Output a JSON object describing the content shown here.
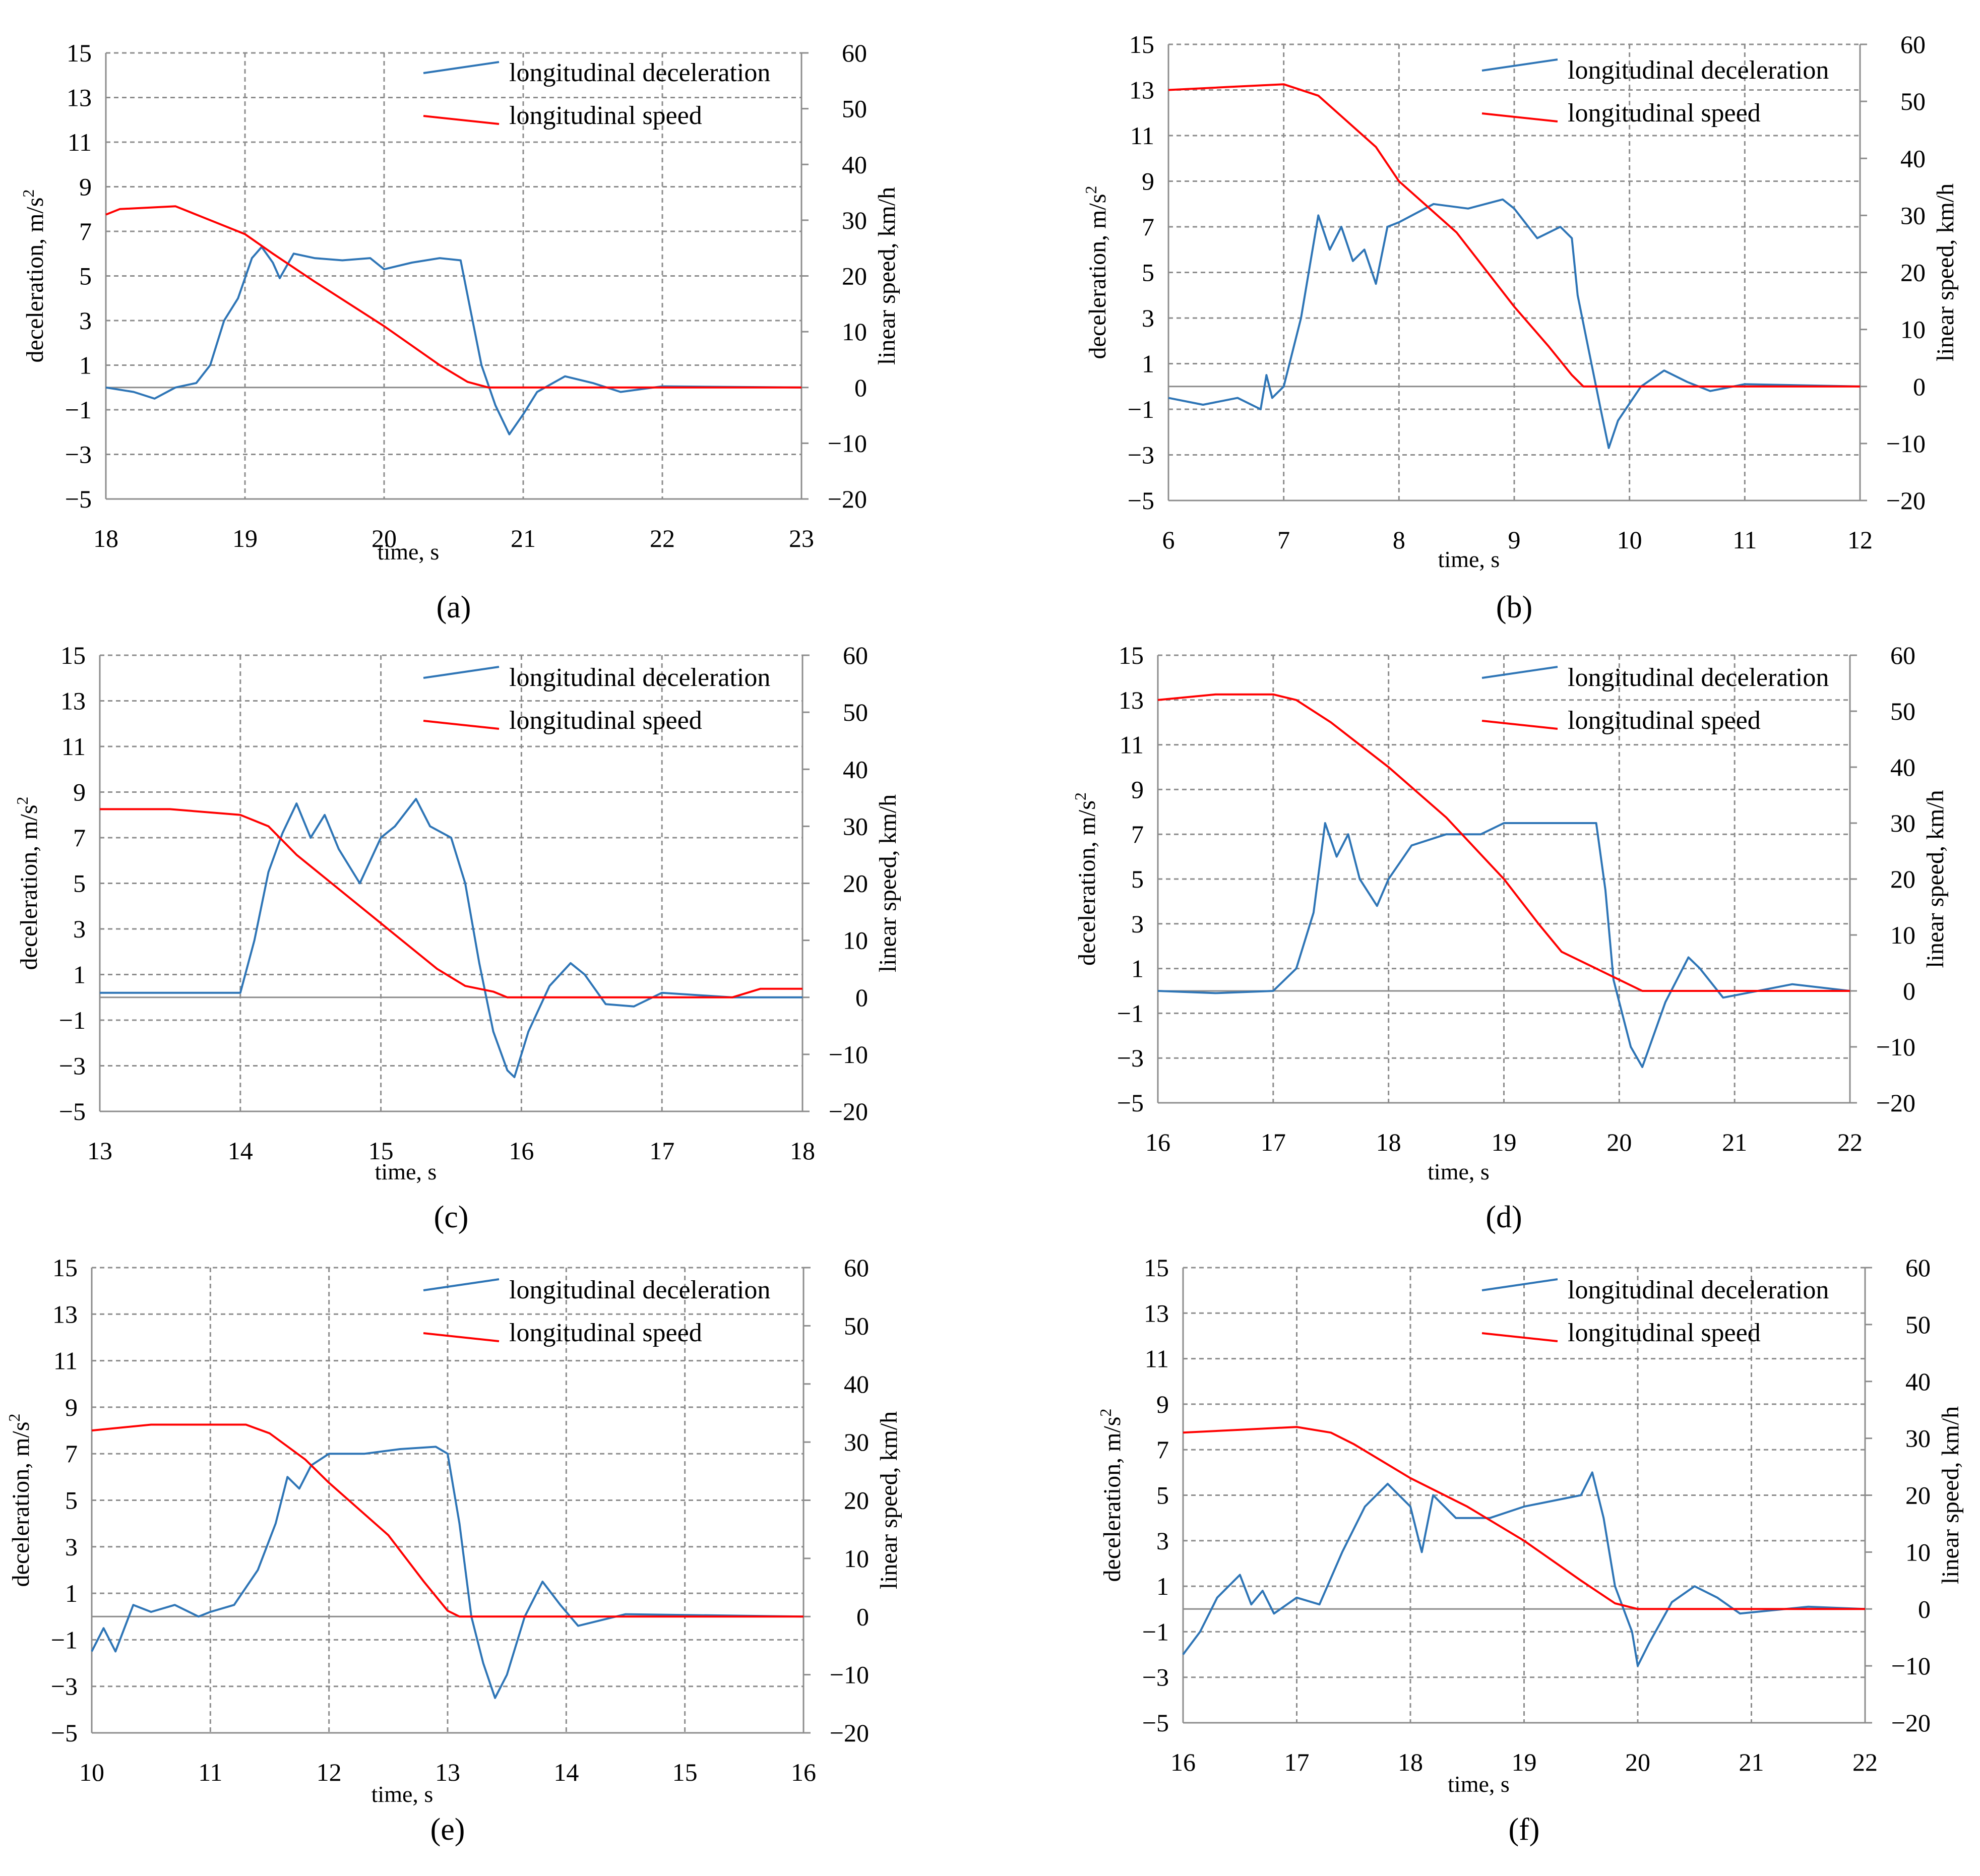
{
  "figure": {
    "colors": {
      "deceleration": "#2e75b6",
      "speed": "#ff0000",
      "grid": "#8c8c8c",
      "axis": "#8c8c8c"
    }
  },
  "chart_data": [
    {
      "panel": "(a)",
      "type": "line",
      "xlabel": "time, s",
      "ylabel": "deceleration, m/s2",
      "y2label": "linear speed, km/h",
      "xlim": [
        18,
        23
      ],
      "xticks": [
        "18",
        "19",
        "20",
        "21",
        "22",
        "23"
      ],
      "ylim": [
        -5,
        15
      ],
      "yticks": [
        "15",
        "13",
        "11",
        "9",
        "7",
        "5",
        "3",
        "1",
        "−1",
        "−3",
        "−5"
      ],
      "y2lim": [
        -20,
        60
      ],
      "y2ticks": [
        "60",
        "50",
        "40",
        "30",
        "20",
        "10",
        "0",
        "−10",
        "−20"
      ],
      "legend": [
        "longitudinal deceleration",
        "longitudinal speed"
      ],
      "series": [
        {
          "name": "longitudinal deceleration",
          "axis": "left",
          "x": [
            18,
            18.2,
            18.35,
            18.5,
            18.65,
            18.75,
            18.85,
            18.95,
            19.05,
            19.12,
            19.2,
            19.25,
            19.35,
            19.5,
            19.7,
            19.9,
            20.0,
            20.2,
            20.4,
            20.55,
            20.62,
            20.7,
            20.8,
            20.9,
            21.0,
            21.1,
            21.3,
            21.5,
            21.7,
            22.0,
            23.0
          ],
          "y": [
            0,
            -0.2,
            -0.5,
            0,
            0.2,
            1.0,
            3.0,
            4.0,
            5.8,
            6.3,
            5.6,
            4.9,
            6.0,
            5.8,
            5.7,
            5.8,
            5.3,
            5.6,
            5.8,
            5.7,
            3.5,
            1.0,
            -0.8,
            -2.1,
            -1.2,
            -0.2,
            0.5,
            0.2,
            -0.2,
            0.05,
            0
          ]
        },
        {
          "name": "longitudinal speed",
          "axis": "right",
          "x": [
            18,
            18.1,
            18.5,
            18.7,
            19.0,
            19.2,
            19.5,
            20.0,
            20.4,
            20.6,
            20.75,
            23.0
          ],
          "y": [
            31,
            32,
            32.5,
            30.5,
            27.5,
            24,
            19,
            11,
            4,
            1,
            0,
            0
          ]
        }
      ]
    },
    {
      "panel": "(b)",
      "type": "line",
      "xlabel": "time, s",
      "ylabel": "deceleration, m/s2",
      "y2label": "linear speed, km/h",
      "xlim": [
        6,
        12
      ],
      "xticks": [
        "6",
        "7",
        "8",
        "9",
        "10",
        "11",
        "12"
      ],
      "ylim": [
        -5,
        15
      ],
      "yticks": [
        "15",
        "13",
        "11",
        "9",
        "7",
        "5",
        "3",
        "1",
        "−1",
        "−3",
        "−5"
      ],
      "y2lim": [
        -20,
        60
      ],
      "y2ticks": [
        "60",
        "50",
        "40",
        "30",
        "20",
        "10",
        "0",
        "−10",
        "−20"
      ],
      "legend": [
        "longitudinal deceleration",
        "longitudinal speed"
      ],
      "series": [
        {
          "name": "longitudinal deceleration",
          "axis": "left",
          "x": [
            6,
            6.3,
            6.6,
            6.8,
            6.85,
            6.9,
            7.0,
            7.15,
            7.3,
            7.4,
            7.5,
            7.6,
            7.7,
            7.8,
            7.9,
            8.0,
            8.3,
            8.6,
            8.9,
            9.0,
            9.2,
            9.4,
            9.5,
            9.55,
            9.65,
            9.75,
            9.82,
            9.9,
            10.1,
            10.3,
            10.5,
            10.7,
            11.0,
            12.0
          ],
          "y": [
            -0.5,
            -0.8,
            -0.5,
            -1.0,
            0.5,
            -0.5,
            0,
            3.0,
            7.5,
            6.0,
            7.0,
            5.5,
            6.0,
            4.5,
            7.0,
            7.2,
            8.0,
            7.8,
            8.2,
            7.8,
            6.5,
            7.0,
            6.5,
            4.0,
            1.5,
            -1.0,
            -2.7,
            -1.5,
            0,
            0.7,
            0.2,
            -0.2,
            0.1,
            0
          ]
        },
        {
          "name": "longitudinal speed",
          "axis": "right",
          "x": [
            6,
            6.5,
            7.0,
            7.3,
            7.8,
            8.0,
            8.5,
            9.0,
            9.3,
            9.5,
            9.6,
            10.0,
            12.0
          ],
          "y": [
            52,
            52.5,
            53,
            51,
            42,
            36,
            27,
            14,
            7,
            2,
            0,
            0,
            0
          ]
        }
      ]
    },
    {
      "panel": "(c)",
      "type": "line",
      "xlabel": "time, s",
      "ylabel": "deceleration, m/s2",
      "y2label": "linear speed, km/h",
      "xlim": [
        13,
        18
      ],
      "xticks": [
        "13",
        "14",
        "15",
        "16",
        "17",
        "18"
      ],
      "ylim": [
        -5,
        15
      ],
      "yticks": [
        "15",
        "13",
        "11",
        "9",
        "7",
        "5",
        "3",
        "1",
        "−1",
        "−3",
        "−5"
      ],
      "y2lim": [
        -20,
        60
      ],
      "y2ticks": [
        "60",
        "50",
        "40",
        "30",
        "20",
        "10",
        "0",
        "−10",
        "−20"
      ],
      "legend": [
        "longitudinal deceleration",
        "longitudinal speed"
      ],
      "series": [
        {
          "name": "longitudinal deceleration",
          "axis": "left",
          "x": [
            13,
            13.5,
            14.0,
            14.1,
            14.2,
            14.3,
            14.4,
            14.5,
            14.6,
            14.7,
            14.85,
            15.0,
            15.1,
            15.25,
            15.35,
            15.5,
            15.6,
            15.7,
            15.8,
            15.9,
            15.95,
            16.05,
            16.2,
            16.35,
            16.45,
            16.6,
            16.8,
            17.0,
            17.5,
            18.0
          ],
          "y": [
            0.2,
            0.2,
            0.2,
            2.5,
            5.5,
            7.2,
            8.5,
            7.0,
            8.0,
            6.5,
            5.0,
            7.0,
            7.5,
            8.7,
            7.5,
            7.0,
            5.0,
            1.5,
            -1.5,
            -3.2,
            -3.5,
            -1.5,
            0.5,
            1.5,
            1.0,
            -0.3,
            -0.4,
            0.2,
            0,
            0
          ]
        },
        {
          "name": "longitudinal speed",
          "axis": "right",
          "x": [
            13,
            13.5,
            14.0,
            14.2,
            14.4,
            15.0,
            15.4,
            15.6,
            15.8,
            15.9,
            17.5,
            17.7,
            18.0
          ],
          "y": [
            33,
            33,
            32,
            30,
            25,
            13,
            5,
            2,
            1,
            0,
            0,
            1.5,
            1.5
          ]
        }
      ]
    },
    {
      "panel": "(d)",
      "type": "line",
      "xlabel": "time, s",
      "ylabel": "deceleration, m/s2",
      "y2label": "linear speed, km/h",
      "xlim": [
        16,
        22
      ],
      "xticks": [
        "16",
        "17",
        "18",
        "19",
        "20",
        "21",
        "22"
      ],
      "ylim": [
        -5,
        15
      ],
      "yticks": [
        "15",
        "13",
        "11",
        "9",
        "7",
        "5",
        "3",
        "1",
        "−1",
        "−3",
        "−5"
      ],
      "y2lim": [
        -20,
        60
      ],
      "y2ticks": [
        "60",
        "50",
        "40",
        "30",
        "20",
        "10",
        "0",
        "−10",
        "−20"
      ],
      "legend": [
        "longitudinal deceleration",
        "longitudinal speed"
      ],
      "series": [
        {
          "name": "longitudinal deceleration",
          "axis": "left",
          "x": [
            16,
            16.5,
            17.0,
            17.2,
            17.35,
            17.45,
            17.55,
            17.65,
            17.75,
            17.9,
            18.0,
            18.2,
            18.5,
            18.8,
            19.0,
            19.3,
            19.6,
            19.8,
            19.88,
            19.95,
            20.1,
            20.2,
            20.4,
            20.6,
            20.7,
            20.9,
            21.5,
            22.0
          ],
          "y": [
            0,
            -0.1,
            0,
            1.0,
            3.5,
            7.5,
            6.0,
            7.0,
            5.0,
            3.8,
            5.0,
            6.5,
            7.0,
            7.0,
            7.5,
            7.5,
            7.5,
            7.5,
            4.5,
            0.5,
            -2.5,
            -3.4,
            -0.5,
            1.5,
            1.0,
            -0.3,
            0.3,
            0
          ]
        },
        {
          "name": "longitudinal speed",
          "axis": "right",
          "x": [
            16,
            16.5,
            17.0,
            17.2,
            17.5,
            18.0,
            18.5,
            19.0,
            19.3,
            19.5,
            19.8,
            20.0,
            20.1,
            20.2,
            22.0
          ],
          "y": [
            52,
            53,
            53,
            52,
            48,
            40,
            31,
            20,
            12,
            7,
            4,
            2,
            1,
            0,
            0
          ]
        }
      ]
    },
    {
      "panel": "(e)",
      "type": "line",
      "xlabel": "time, s",
      "ylabel": "deceleration, m/s2",
      "y2label": "linear speed, km/h",
      "xlim": [
        10,
        16
      ],
      "xticks": [
        "10",
        "11",
        "12",
        "13",
        "14",
        "15",
        "16"
      ],
      "ylim": [
        -5,
        15
      ],
      "yticks": [
        "15",
        "13",
        "11",
        "9",
        "7",
        "5",
        "3",
        "1",
        "−1",
        "−3",
        "−5"
      ],
      "y2lim": [
        -20,
        60
      ],
      "y2ticks": [
        "60",
        "50",
        "40",
        "30",
        "20",
        "10",
        "0",
        "−10",
        "−20"
      ],
      "legend": [
        "longitudinal deceleration",
        "longitudinal speed"
      ],
      "series": [
        {
          "name": "longitudinal deceleration",
          "axis": "left",
          "x": [
            10,
            10.1,
            10.2,
            10.35,
            10.5,
            10.7,
            10.9,
            11.0,
            11.2,
            11.4,
            11.55,
            11.65,
            11.75,
            11.85,
            12.0,
            12.3,
            12.6,
            12.9,
            13.0,
            13.1,
            13.2,
            13.3,
            13.4,
            13.5,
            13.65,
            13.8,
            13.95,
            14.1,
            14.5,
            16.0
          ],
          "y": [
            -1.5,
            -0.5,
            -1.5,
            0.5,
            0.2,
            0.5,
            0,
            0.2,
            0.5,
            2.0,
            4.0,
            6.0,
            5.5,
            6.5,
            7.0,
            7.0,
            7.2,
            7.3,
            7.0,
            4.0,
            0,
            -2.0,
            -3.5,
            -2.5,
            0,
            1.5,
            0.5,
            -0.4,
            0.1,
            0
          ]
        },
        {
          "name": "longitudinal speed",
          "axis": "right",
          "x": [
            10,
            10.5,
            11.0,
            11.3,
            11.5,
            11.8,
            12.0,
            12.5,
            12.8,
            13.0,
            13.1,
            16.0
          ],
          "y": [
            32,
            33,
            33,
            33,
            31.5,
            27,
            23,
            14,
            6,
            1,
            0,
            0
          ]
        }
      ]
    },
    {
      "panel": "(f)",
      "type": "line",
      "xlabel": "time, s",
      "ylabel": "deceleration, m/s2",
      "y2label": "linear speed, km/h",
      "xlim": [
        16,
        22
      ],
      "xticks": [
        "16",
        "17",
        "18",
        "19",
        "20",
        "21",
        "22"
      ],
      "ylim": [
        -5,
        15
      ],
      "yticks": [
        "15",
        "13",
        "11",
        "9",
        "7",
        "5",
        "3",
        "1",
        "−1",
        "−3",
        "−5"
      ],
      "y2lim": [
        -20,
        60
      ],
      "y2ticks": [
        "60",
        "50",
        "40",
        "30",
        "20",
        "10",
        "0",
        "−10",
        "−20"
      ],
      "legend": [
        "longitudinal deceleration",
        "longitudinal speed"
      ],
      "series": [
        {
          "name": "longitudinal deceleration",
          "axis": "left",
          "x": [
            16,
            16.15,
            16.3,
            16.5,
            16.6,
            16.7,
            16.8,
            17.0,
            17.2,
            17.4,
            17.6,
            17.8,
            18.0,
            18.1,
            18.2,
            18.4,
            18.7,
            19.0,
            19.3,
            19.5,
            19.6,
            19.7,
            19.8,
            19.95,
            20.0,
            20.1,
            20.3,
            20.5,
            20.7,
            20.9,
            21.5,
            22.0
          ],
          "y": [
            -2.0,
            -1.0,
            0.5,
            1.5,
            0.2,
            0.8,
            -0.2,
            0.5,
            0.2,
            2.5,
            4.5,
            5.5,
            4.5,
            2.5,
            5.0,
            4.0,
            4.0,
            4.5,
            4.8,
            5.0,
            6.0,
            4.0,
            1.0,
            -1.0,
            -2.5,
            -1.5,
            0.3,
            1.0,
            0.5,
            -0.2,
            0.1,
            0
          ]
        },
        {
          "name": "longitudinal speed",
          "axis": "right",
          "x": [
            16,
            16.5,
            17.0,
            17.3,
            17.5,
            18.0,
            18.5,
            19.0,
            19.5,
            19.8,
            20.0,
            22.0
          ],
          "y": [
            31,
            31.5,
            32,
            31,
            29,
            23,
            18,
            12,
            5,
            1,
            0,
            0
          ]
        }
      ]
    }
  ]
}
